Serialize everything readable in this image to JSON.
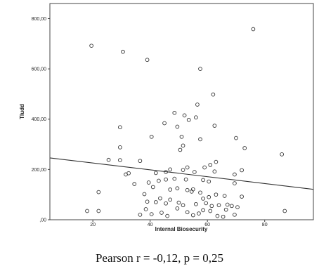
{
  "chart_data": {
    "type": "scatter",
    "xlabel": "Internal Biosecurity",
    "ylabel": "TIudd",
    "xlim": [
      5,
      97
    ],
    "ylim": [
      0,
      860
    ],
    "x_ticks": [
      20,
      40,
      60,
      80
    ],
    "x_tick_labels": [
      "20",
      "40",
      "60",
      "80"
    ],
    "y_ticks": [
      0,
      200,
      400,
      600,
      800
    ],
    "y_tick_labels": [
      ",00",
      "200,00",
      "400,00",
      "600,00",
      "800,00"
    ],
    "grid": false,
    "legend": "none",
    "fit_line": {
      "x": [
        5,
        97
      ],
      "y": [
        246,
        121
      ]
    },
    "points": [
      {
        "x": 19.5,
        "y": 692
      },
      {
        "x": 30.5,
        "y": 668
      },
      {
        "x": 39,
        "y": 636
      },
      {
        "x": 76,
        "y": 758
      },
      {
        "x": 57.5,
        "y": 600
      },
      {
        "x": 62,
        "y": 498
      },
      {
        "x": 56.5,
        "y": 458
      },
      {
        "x": 48.5,
        "y": 425
      },
      {
        "x": 52,
        "y": 415
      },
      {
        "x": 56,
        "y": 407
      },
      {
        "x": 53.5,
        "y": 397
      },
      {
        "x": 29.5,
        "y": 368
      },
      {
        "x": 45,
        "y": 384
      },
      {
        "x": 49.5,
        "y": 370
      },
      {
        "x": 62.5,
        "y": 374
      },
      {
        "x": 40.5,
        "y": 330
      },
      {
        "x": 51,
        "y": 330
      },
      {
        "x": 57.5,
        "y": 320
      },
      {
        "x": 70,
        "y": 325
      },
      {
        "x": 51.5,
        "y": 295
      },
      {
        "x": 29.5,
        "y": 288
      },
      {
        "x": 73,
        "y": 285
      },
      {
        "x": 50.5,
        "y": 278
      },
      {
        "x": 86,
        "y": 260
      },
      {
        "x": 25.5,
        "y": 238
      },
      {
        "x": 29.5,
        "y": 237
      },
      {
        "x": 36.5,
        "y": 234
      },
      {
        "x": 53,
        "y": 208
      },
      {
        "x": 59,
        "y": 208
      },
      {
        "x": 61,
        "y": 218
      },
      {
        "x": 63,
        "y": 230
      },
      {
        "x": 72,
        "y": 197
      },
      {
        "x": 31.5,
        "y": 180
      },
      {
        "x": 32.5,
        "y": 185
      },
      {
        "x": 42,
        "y": 186
      },
      {
        "x": 45.5,
        "y": 190
      },
      {
        "x": 47,
        "y": 200
      },
      {
        "x": 51.5,
        "y": 198
      },
      {
        "x": 55.5,
        "y": 190
      },
      {
        "x": 62.5,
        "y": 192
      },
      {
        "x": 69.5,
        "y": 180
      },
      {
        "x": 34.5,
        "y": 142
      },
      {
        "x": 39.5,
        "y": 148
      },
      {
        "x": 43,
        "y": 155
      },
      {
        "x": 45.5,
        "y": 160
      },
      {
        "x": 48.5,
        "y": 163
      },
      {
        "x": 52.5,
        "y": 160
      },
      {
        "x": 58.5,
        "y": 158
      },
      {
        "x": 60.5,
        "y": 152
      },
      {
        "x": 69.5,
        "y": 145
      },
      {
        "x": 41,
        "y": 130
      },
      {
        "x": 47,
        "y": 120
      },
      {
        "x": 49.5,
        "y": 125
      },
      {
        "x": 53,
        "y": 118
      },
      {
        "x": 54.5,
        "y": 112
      },
      {
        "x": 55,
        "y": 121
      },
      {
        "x": 57.5,
        "y": 108
      },
      {
        "x": 22,
        "y": 110
      },
      {
        "x": 38,
        "y": 102
      },
      {
        "x": 63,
        "y": 100
      },
      {
        "x": 66,
        "y": 95
      },
      {
        "x": 72,
        "y": 92
      },
      {
        "x": 43.5,
        "y": 85
      },
      {
        "x": 47,
        "y": 80
      },
      {
        "x": 58.5,
        "y": 84
      },
      {
        "x": 60.5,
        "y": 90
      },
      {
        "x": 39,
        "y": 72
      },
      {
        "x": 42,
        "y": 70
      },
      {
        "x": 45.5,
        "y": 65
      },
      {
        "x": 50,
        "y": 68
      },
      {
        "x": 51.5,
        "y": 58
      },
      {
        "x": 56,
        "y": 62
      },
      {
        "x": 59.5,
        "y": 66
      },
      {
        "x": 61.5,
        "y": 55
      },
      {
        "x": 64,
        "y": 58
      },
      {
        "x": 67,
        "y": 60
      },
      {
        "x": 68.5,
        "y": 55
      },
      {
        "x": 70.5,
        "y": 50
      },
      {
        "x": 38.5,
        "y": 42
      },
      {
        "x": 49.5,
        "y": 45
      },
      {
        "x": 58.5,
        "y": 38
      },
      {
        "x": 61,
        "y": 35
      },
      {
        "x": 66.5,
        "y": 40
      },
      {
        "x": 18,
        "y": 35
      },
      {
        "x": 22,
        "y": 35
      },
      {
        "x": 87,
        "y": 35
      },
      {
        "x": 36.5,
        "y": 20
      },
      {
        "x": 40.5,
        "y": 22
      },
      {
        "x": 46,
        "y": 15
      },
      {
        "x": 55,
        "y": 18
      },
      {
        "x": 57,
        "y": 25
      },
      {
        "x": 63.5,
        "y": 15
      },
      {
        "x": 65.5,
        "y": 12
      },
      {
        "x": 53,
        "y": 30
      },
      {
        "x": 44,
        "y": 28
      },
      {
        "x": 69.5,
        "y": 20
      }
    ]
  },
  "caption": "Pearson r = -0,12, p = 0,25"
}
